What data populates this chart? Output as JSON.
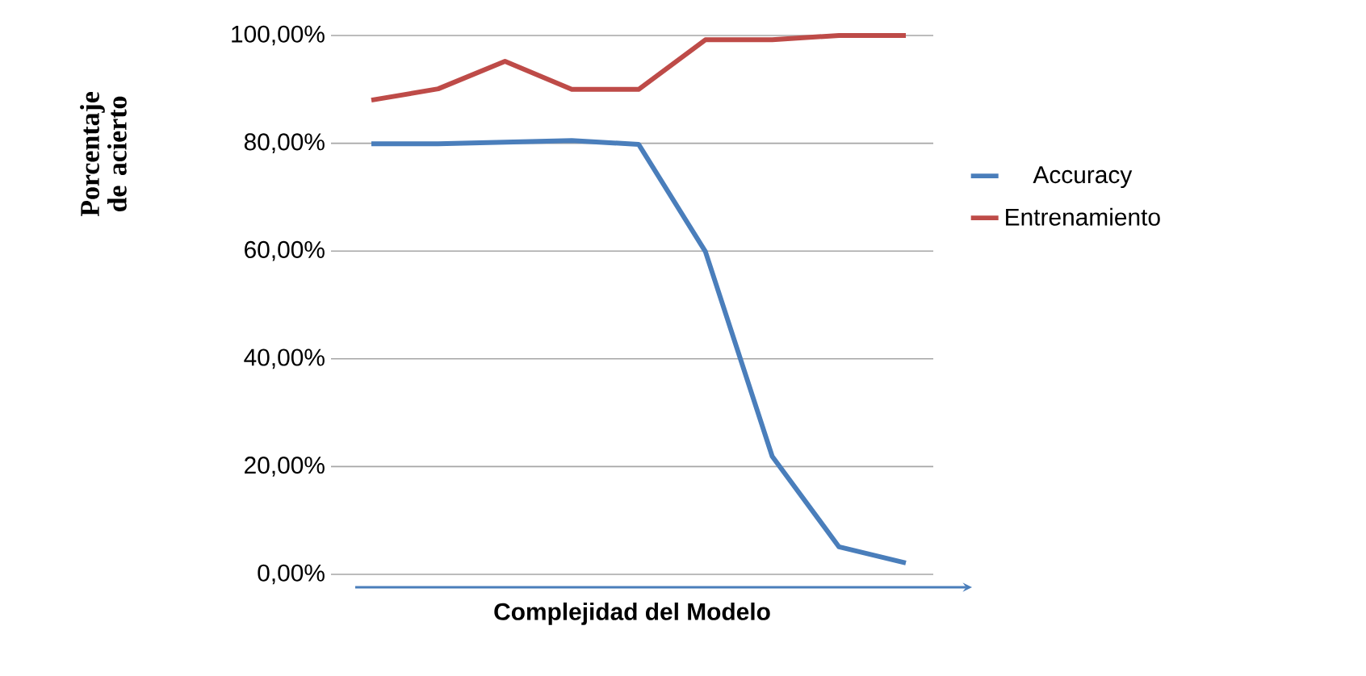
{
  "chart_data": {
    "type": "line",
    "xlabel": "Complejidad del Modelo",
    "ylabel": "Porcentaje de acierto",
    "categories": [
      null,
      null,
      null,
      null,
      null,
      null,
      null,
      null,
      null
    ],
    "series": [
      {
        "name": "Accuracy",
        "color": "#4a7ebb",
        "values": [
          79.9,
          79.9,
          80.2,
          80.5,
          79.8,
          59.9,
          21.9,
          5.1,
          2.1
        ]
      },
      {
        "name": "Entrenamiento",
        "color": "#be4b48",
        "values": [
          88,
          90.1,
          95.2,
          90,
          90,
          99.2,
          99.2,
          100,
          100
        ]
      }
    ],
    "ylim": [
      0,
      100
    ],
    "yticks": [
      {
        "value": 0,
        "label": "0,00%"
      },
      {
        "value": 20,
        "label": "20,00%"
      },
      {
        "value": 40,
        "label": "40,00%"
      },
      {
        "value": 60,
        "label": "60,00%"
      },
      {
        "value": 80,
        "label": "80,00%"
      },
      {
        "value": 100,
        "label": "100,00%"
      }
    ],
    "grid": "y",
    "legend": "right",
    "tick_labels": "y",
    "marker": "none",
    "line_style": "solid"
  }
}
